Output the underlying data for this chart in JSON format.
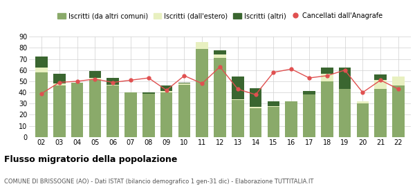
{
  "years": [
    "02",
    "03",
    "04",
    "05",
    "06",
    "07",
    "08",
    "09",
    "10",
    "11",
    "12",
    "13",
    "14",
    "15",
    "16",
    "17",
    "18",
    "19",
    "20",
    "21",
    "22"
  ],
  "iscritti_altri_comuni": [
    58,
    46,
    49,
    51,
    46,
    40,
    39,
    40,
    47,
    79,
    71,
    33,
    26,
    27,
    32,
    38,
    50,
    43,
    30,
    43,
    46
  ],
  "iscritti_estero": [
    4,
    2,
    0,
    2,
    1,
    0,
    0,
    1,
    1,
    6,
    3,
    1,
    1,
    1,
    0,
    0,
    7,
    0,
    2,
    8,
    8
  ],
  "iscritti_altri": [
    10,
    9,
    0,
    6,
    6,
    0,
    1,
    5,
    1,
    0,
    4,
    20,
    17,
    4,
    0,
    3,
    5,
    19,
    0,
    5,
    0
  ],
  "cancellati": [
    39,
    49,
    50,
    52,
    49,
    51,
    53,
    42,
    55,
    48,
    63,
    43,
    38,
    58,
    61,
    53,
    55,
    60,
    40,
    51,
    43
  ],
  "color_altri_comuni": "#8aaa6a",
  "color_estero": "#e8f0c0",
  "color_altri": "#3a6630",
  "color_cancellati": "#e05050",
  "title": "Flusso migratorio della popolazione",
  "subtitle": "COMUNE DI BRISSOGNE (AO) - Dati ISTAT (bilancio demografico 1 gen-31 dic) - Elaborazione TUTTITALIA.IT",
  "ylim": [
    0,
    90
  ],
  "yticks": [
    0,
    10,
    20,
    30,
    40,
    50,
    60,
    70,
    80,
    90
  ],
  "legend_labels": [
    "Iscritti (da altri comuni)",
    "Iscritti (dall'estero)",
    "Iscritti (altri)",
    "Cancellati dall'Anagrafe"
  ],
  "background_color": "#ffffff",
  "grid_color": "#d0d0d0"
}
